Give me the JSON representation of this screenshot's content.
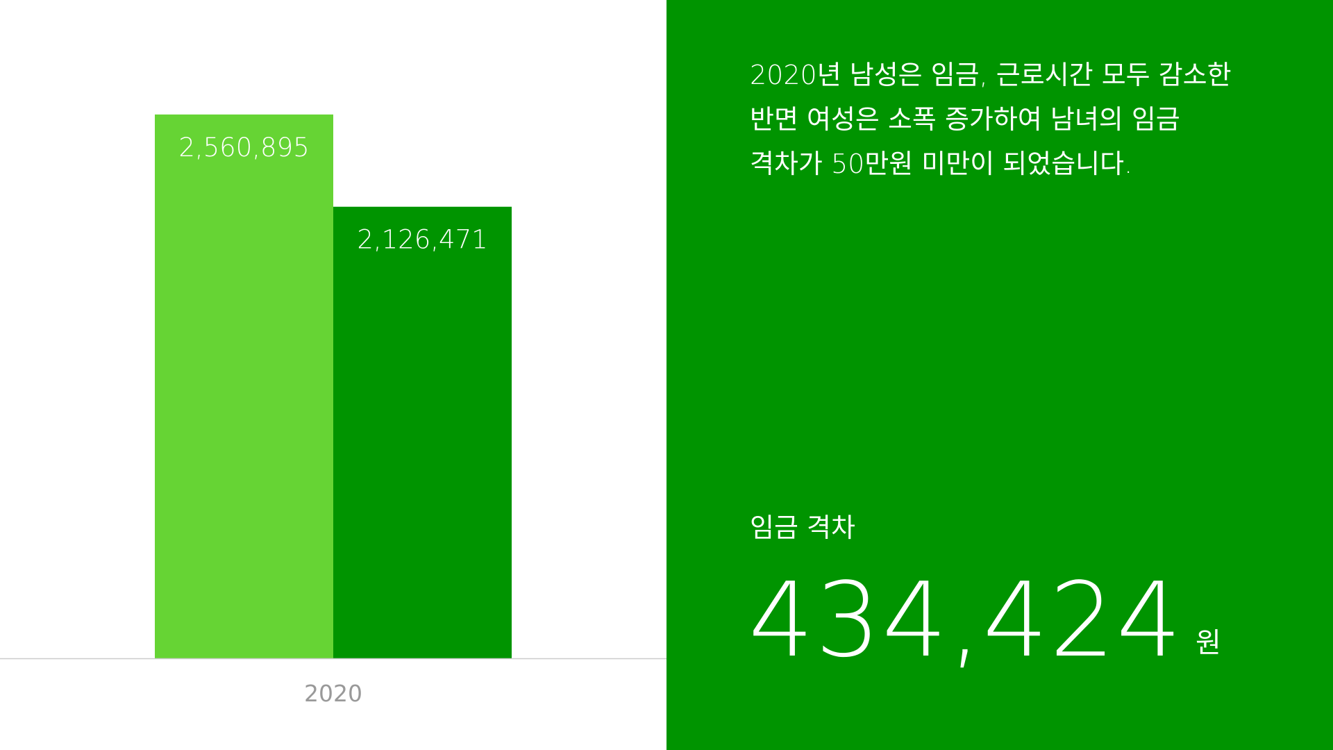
{
  "chart_data": {
    "type": "bar",
    "categories": [
      "2020"
    ],
    "series": [
      {
        "values": [
          2560895
        ],
        "labels": [
          "2,560,895"
        ],
        "color": "#66d434"
      },
      {
        "values": [
          2126471
        ],
        "labels": [
          "2,126,471"
        ],
        "color": "#009400"
      }
    ],
    "ylim": [
      0,
      3100000
    ],
    "grid": false,
    "legend": "none",
    "baseline_color": "#cccccc",
    "tick_label_color": "#999999"
  },
  "panel": {
    "background": "#009400",
    "description": "2020년 남성은 임금, 근로시간 모두 감소한\n반면 여성은 소폭 증가하여 남녀의 임금\n격차가 50만원 미만이 되었습니다.",
    "gap_label": "임금 격차",
    "gap_value": "434,424",
    "gap_unit": "원"
  }
}
